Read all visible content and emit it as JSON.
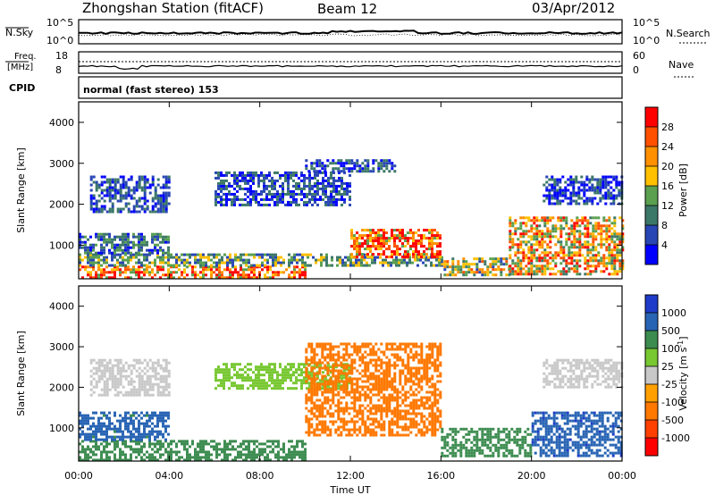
{
  "header": {
    "station": "Zhongshan Station (fitACF)",
    "beam": "Beam 12",
    "date": "03/Apr/2012"
  },
  "top_panels": {
    "nsky_label": "N.Sky",
    "nsky_ticks": [
      "10^5",
      "10^0"
    ],
    "nsearch_label": "N.Search",
    "nsearch_ticks": [
      "10^5",
      "10^0"
    ],
    "freq_label": "Freq.",
    "freq_unit": "[MHz]",
    "freq_ticks": [
      "18",
      "8"
    ],
    "nave_label": "Nave",
    "nave_ticks": [
      "60",
      "0"
    ],
    "cpid_label": "CPID",
    "cpid_text": "normal (fast stereo) 153"
  },
  "axes": {
    "ylabel": "Slant Range [km]",
    "xlabel": "Time UT",
    "y_ticks": [
      "4000",
      "3000",
      "2000",
      "1000"
    ],
    "x_ticks": [
      "00:00",
      "04:00",
      "08:00",
      "12:00",
      "16:00",
      "20:00",
      "00:00"
    ]
  },
  "power_colorbar": {
    "label": "Power [dB]",
    "ticks": [
      "28",
      "24",
      "20",
      "16",
      "12",
      "8",
      "4"
    ],
    "colors": [
      "#ff0000",
      "#ff5000",
      "#ff9000",
      "#ffc000",
      "#5aa050",
      "#3c7868",
      "#2846b4",
      "#0000ff"
    ]
  },
  "velocity_colorbar": {
    "label": "Velocity [m s",
    "label_sup": "-1",
    "label_close": "]",
    "ticks": [
      "1000",
      "500",
      "100",
      "25",
      "-25",
      "-100",
      "-500",
      "-1000"
    ],
    "colors": [
      "#1e3cc8",
      "#2864b4",
      "#3c8c50",
      "#78c832",
      "#c8c8c8",
      "#ffa000",
      "#ff7800",
      "#ff4000",
      "#ff0000"
    ]
  },
  "chart_data": {
    "type": "heatmap",
    "title": "Zhongshan Station (fitACF)",
    "xlabel": "Time UT",
    "ylabel": "Slant Range [km]",
    "xlim": [
      "00:00",
      "24:00"
    ],
    "ylim": [
      180,
      4500
    ],
    "series": [
      {
        "name": "Power [dB]",
        "scale": [
          4,
          8,
          12,
          16,
          20,
          24,
          28
        ],
        "regions": [
          {
            "t": [
              0,
              10
            ],
            "range_km": [
              200,
              500
            ],
            "value": 24
          },
          {
            "t": [
              0,
              16
            ],
            "range_km": [
              500,
              800
            ],
            "value": 12
          },
          {
            "t": [
              0,
              4
            ],
            "range_km": [
              800,
              1300
            ],
            "value": 8
          },
          {
            "t": [
              0.5,
              4
            ],
            "range_km": [
              1800,
              2700
            ],
            "value": 6
          },
          {
            "t": [
              6,
              12
            ],
            "range_km": [
              2000,
              2800
            ],
            "value": 6
          },
          {
            "t": [
              10,
              14
            ],
            "range_km": [
              2800,
              3100
            ],
            "value": 6
          },
          {
            "t": [
              12,
              16
            ],
            "range_km": [
              700,
              1400
            ],
            "value": 26
          },
          {
            "t": [
              16,
              19
            ],
            "range_km": [
              300,
              700
            ],
            "value": 16
          },
          {
            "t": [
              19,
              24
            ],
            "range_km": [
              300,
              1700
            ],
            "value": 20
          },
          {
            "t": [
              20.5,
              24
            ],
            "range_km": [
              2000,
              2700
            ],
            "value": 6
          }
        ]
      },
      {
        "name": "Velocity [m s-1]",
        "scale": [
          -1000,
          -500,
          -100,
          -25,
          25,
          100,
          500,
          1000
        ],
        "regions": [
          {
            "t": [
              0,
              10
            ],
            "range_km": [
              200,
              700
            ],
            "value": 200
          },
          {
            "t": [
              0,
              4
            ],
            "range_km": [
              700,
              1400
            ],
            "value": 700
          },
          {
            "t": [
              0.5,
              4
            ],
            "range_km": [
              1800,
              2700
            ],
            "value": 0
          },
          {
            "t": [
              6,
              12
            ],
            "range_km": [
              2000,
              2600
            ],
            "value": 60
          },
          {
            "t": [
              10,
              16
            ],
            "range_km": [
              800,
              3100
            ],
            "value": -150
          },
          {
            "t": [
              16,
              20
            ],
            "range_km": [
              300,
              1000
            ],
            "value": 300
          },
          {
            "t": [
              20,
              24
            ],
            "range_km": [
              300,
              1400
            ],
            "value": 800
          },
          {
            "t": [
              20.5,
              24
            ],
            "range_km": [
              2000,
              2700
            ],
            "value": 0
          }
        ]
      }
    ]
  }
}
